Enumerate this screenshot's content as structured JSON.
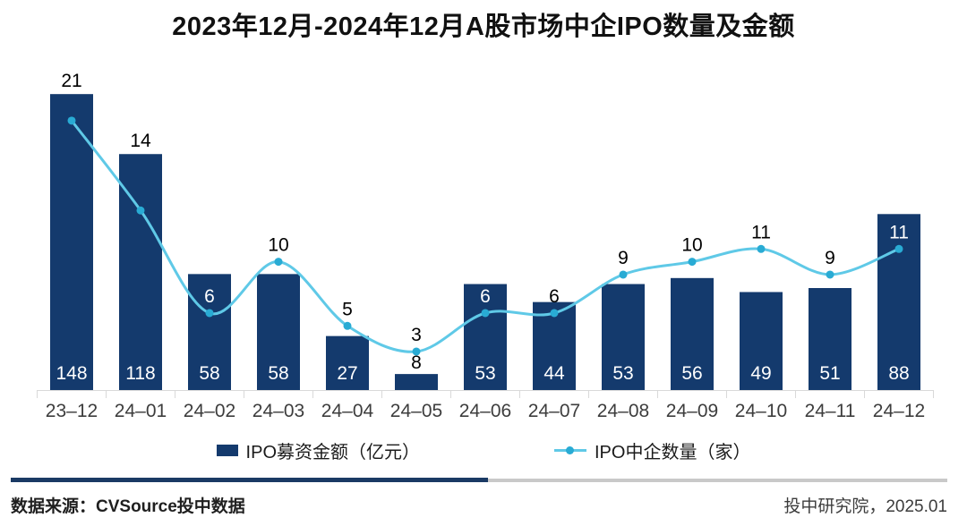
{
  "title": "2023年12月-2024年12月A股市场中企IPO数量及金额",
  "chart_data": {
    "type": "combo-bar-line",
    "title": "2023年12月-2024年12月A股市场中企IPO数量及金额",
    "categories": [
      "23–12",
      "24–01",
      "24–02",
      "24–03",
      "24–04",
      "24–05",
      "24–06",
      "24–07",
      "24–08",
      "24–09",
      "24–10",
      "24–11",
      "24–12"
    ],
    "series": [
      {
        "name": "IPO募资金额（亿元）",
        "type": "bar",
        "values": [
          148,
          118,
          58,
          58,
          27,
          8,
          53,
          44,
          53,
          56,
          49,
          51,
          88
        ],
        "color": "#143a6d",
        "label_color_inside": "#ffffff",
        "label_color_outside": "#000000",
        "axis_max": 170
      },
      {
        "name": "IPO中企数量（家）",
        "type": "line",
        "values": [
          21,
          14,
          6,
          10,
          5,
          3,
          6,
          6,
          9,
          10,
          11,
          9,
          11
        ],
        "color": "#5fc9e7",
        "marker_color": "#29abd4",
        "label_color": "#000000",
        "axis_max": 26.5,
        "label_positions": [
          "above_bar",
          "above_bar",
          "above_marker",
          "above_marker",
          "above_marker",
          "above_marker",
          "above_marker",
          "above_marker",
          "above_marker",
          "above_marker",
          "above_marker",
          "above_marker",
          "above_marker"
        ]
      }
    ],
    "xlabel": "",
    "ylabel": "",
    "grid": false,
    "axis_color": "#d9d9d9",
    "tick_label_color": "#3d3d3d",
    "legend_position": "bottom"
  },
  "legend": {
    "bar_label": "IPO募资金额（亿元）",
    "line_label": "IPO中企数量（家）"
  },
  "divider": {
    "navy_color": "#1a3a64"
  },
  "footer": {
    "source": "数据来源：CVSource投中数据",
    "credit": "投中研究院，2025.01"
  }
}
